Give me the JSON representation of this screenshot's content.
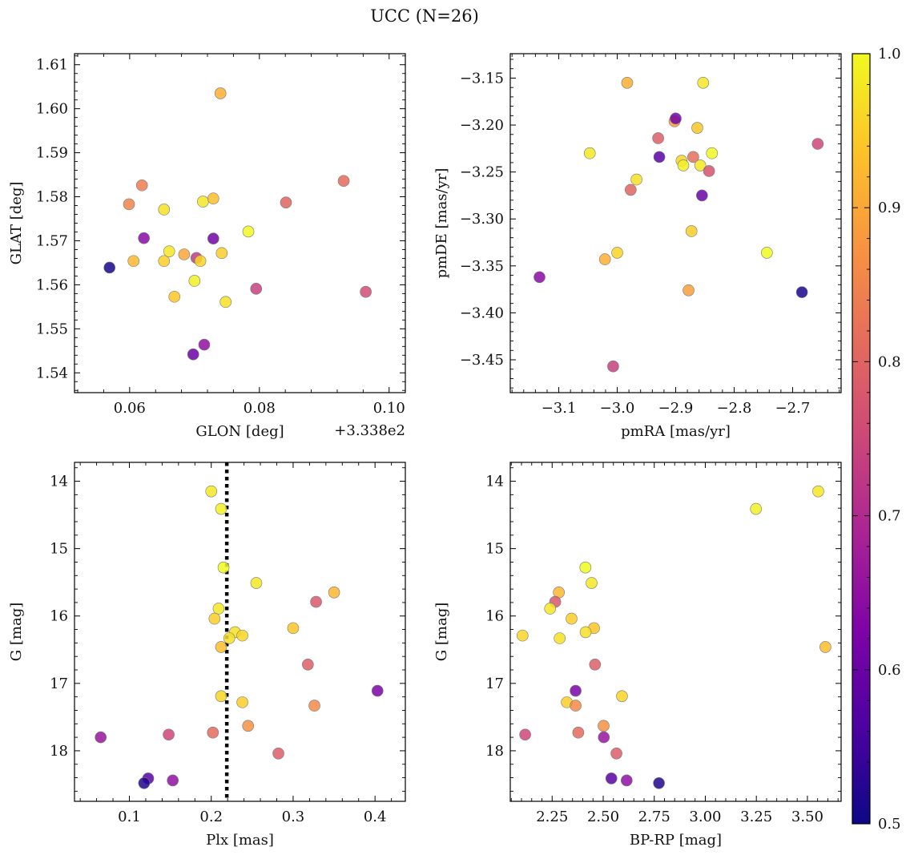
{
  "figure": {
    "suptitle": "UCC (N=26)",
    "colorbar": {
      "range": [
        0.5,
        1.0
      ],
      "ticks": [
        0.5,
        0.6,
        0.7,
        0.8,
        0.9,
        1.0
      ],
      "tick_labels": [
        "0.5",
        "0.6",
        "0.7",
        "0.8",
        "0.9",
        "1.0"
      ],
      "colormap": "plasma",
      "position": "right"
    }
  },
  "chart_data": [
    {
      "type": "scatter",
      "panel": "top-left",
      "xlabel": "GLON [deg]",
      "ylabel": "GLAT [deg]",
      "offset_label": "+3.338e2",
      "xlim": [
        0.0515,
        0.1025
      ],
      "ylim": [
        1.5355,
        1.6125
      ],
      "xticks": [
        0.06,
        0.08,
        0.1
      ],
      "xtick_labels": [
        "0.06",
        "0.08",
        "0.10"
      ],
      "yticks": [
        1.54,
        1.55,
        1.56,
        1.57,
        1.58,
        1.59,
        1.6,
        1.61
      ],
      "ytick_labels": [
        "1.54",
        "1.55",
        "1.56",
        "1.57",
        "1.58",
        "1.59",
        "1.60",
        "1.61"
      ],
      "grid": false,
      "points": [
        {
          "x": 0.074,
          "y": 1.6035,
          "c": 0.91
        },
        {
          "x": 0.0569,
          "y": 1.5639,
          "c": 0.51
        },
        {
          "x": 0.0599,
          "y": 1.5783,
          "c": 0.85
        },
        {
          "x": 0.0606,
          "y": 1.5654,
          "c": 0.92
        },
        {
          "x": 0.0619,
          "y": 1.5826,
          "c": 0.84
        },
        {
          "x": 0.0622,
          "y": 1.5706,
          "c": 0.64
        },
        {
          "x": 0.0653,
          "y": 1.5771,
          "c": 0.97
        },
        {
          "x": 0.0653,
          "y": 1.5654,
          "c": 0.95
        },
        {
          "x": 0.0661,
          "y": 1.5676,
          "c": 0.98
        },
        {
          "x": 0.0669,
          "y": 1.5573,
          "c": 0.94
        },
        {
          "x": 0.0684,
          "y": 1.5669,
          "c": 0.9
        },
        {
          "x": 0.0698,
          "y": 1.5442,
          "c": 0.6
        },
        {
          "x": 0.07,
          "y": 1.5609,
          "c": 0.99
        },
        {
          "x": 0.0703,
          "y": 1.5661,
          "c": 0.73
        },
        {
          "x": 0.0709,
          "y": 1.5654,
          "c": 0.96
        },
        {
          "x": 0.0713,
          "y": 1.5789,
          "c": 0.98
        },
        {
          "x": 0.0715,
          "y": 1.5464,
          "c": 0.65
        },
        {
          "x": 0.0729,
          "y": 1.5796,
          "c": 0.93
        },
        {
          "x": 0.0729,
          "y": 1.5705,
          "c": 0.61
        },
        {
          "x": 0.0742,
          "y": 1.5672,
          "c": 0.95
        },
        {
          "x": 0.0748,
          "y": 1.5561,
          "c": 0.97
        },
        {
          "x": 0.0783,
          "y": 1.5721,
          "c": 1.0
        },
        {
          "x": 0.0795,
          "y": 1.5591,
          "c": 0.74
        },
        {
          "x": 0.0841,
          "y": 1.5787,
          "c": 0.8
        },
        {
          "x": 0.093,
          "y": 1.5836,
          "c": 0.81
        },
        {
          "x": 0.0964,
          "y": 1.5584,
          "c": 0.76
        }
      ]
    },
    {
      "type": "scatter",
      "panel": "top-right",
      "xlabel": "pmRA [mas/yr]",
      "ylabel": "pmDE [mas/yr]",
      "xlim": [
        -3.183,
        -2.617
      ],
      "ylim": [
        -3.485,
        -3.124
      ],
      "xticks": [
        -3.1,
        -3.0,
        -2.9,
        -2.8,
        -2.7
      ],
      "xtick_labels": [
        "−3.1",
        "−3.0",
        "−2.9",
        "−2.8",
        "−2.7"
      ],
      "yticks": [
        -3.45,
        -3.4,
        -3.35,
        -3.3,
        -3.25,
        -3.2,
        -3.15
      ],
      "ytick_labels": [
        "−3.45",
        "−3.40",
        "−3.35",
        "−3.30",
        "−3.25",
        "−3.20",
        "−3.15"
      ],
      "grid": false,
      "points": [
        {
          "x": -3.133,
          "y": -3.362,
          "c": 0.64
        },
        {
          "x": -3.047,
          "y": -3.23,
          "c": 0.98
        },
        {
          "x": -3.021,
          "y": -3.343,
          "c": 0.91
        },
        {
          "x": -3.007,
          "y": -3.457,
          "c": 0.74
        },
        {
          "x": -3.0,
          "y": -3.336,
          "c": 0.96
        },
        {
          "x": -2.983,
          "y": -3.155,
          "c": 0.91
        },
        {
          "x": -2.977,
          "y": -3.269,
          "c": 0.8
        },
        {
          "x": -2.967,
          "y": -3.258,
          "c": 0.97
        },
        {
          "x": -2.93,
          "y": -3.214,
          "c": 0.79
        },
        {
          "x": -2.928,
          "y": -3.234,
          "c": 0.58
        },
        {
          "x": -2.902,
          "y": -3.196,
          "c": 0.88
        },
        {
          "x": -2.9,
          "y": -3.193,
          "c": 0.61
        },
        {
          "x": -2.89,
          "y": -3.238,
          "c": 0.96
        },
        {
          "x": -2.887,
          "y": -3.243,
          "c": 0.99
        },
        {
          "x": -2.878,
          "y": -3.376,
          "c": 0.89
        },
        {
          "x": -2.873,
          "y": -3.313,
          "c": 0.95
        },
        {
          "x": -2.87,
          "y": -3.234,
          "c": 0.82
        },
        {
          "x": -2.863,
          "y": -3.203,
          "c": 0.94
        },
        {
          "x": -2.858,
          "y": -3.243,
          "c": 0.98
        },
        {
          "x": -2.855,
          "y": -3.275,
          "c": 0.6
        },
        {
          "x": -2.853,
          "y": -3.155,
          "c": 0.98
        },
        {
          "x": -2.843,
          "y": -3.249,
          "c": 0.77
        },
        {
          "x": -2.838,
          "y": -3.23,
          "c": 1.0
        },
        {
          "x": -2.744,
          "y": -3.336,
          "c": 1.0
        },
        {
          "x": -2.684,
          "y": -3.378,
          "c": 0.51
        },
        {
          "x": -2.657,
          "y": -3.22,
          "c": 0.75
        }
      ]
    },
    {
      "type": "scatter",
      "panel": "bottom-left",
      "xlabel": "Plx [mas]",
      "ylabel": "G [mag]",
      "xlim": [
        0.033,
        0.437
      ],
      "ylim": [
        18.75,
        13.72
      ],
      "y_inverted": true,
      "xticks": [
        0.1,
        0.2,
        0.3,
        0.4
      ],
      "xtick_labels": [
        "0.1",
        "0.2",
        "0.3",
        "0.4"
      ],
      "yticks": [
        14,
        15,
        16,
        17,
        18
      ],
      "ytick_labels": [
        "14",
        "15",
        "16",
        "17",
        "18"
      ],
      "grid": false,
      "vline": {
        "x": 0.219,
        "style": "dotted",
        "color": "#000000"
      },
      "points": [
        {
          "x": 0.2,
          "y": 14.15,
          "c": 0.98
        },
        {
          "x": 0.212,
          "y": 14.41,
          "c": 0.99
        },
        {
          "x": 0.215,
          "y": 15.28,
          "c": 1.0
        },
        {
          "x": 0.255,
          "y": 15.51,
          "c": 0.98
        },
        {
          "x": 0.35,
          "y": 15.65,
          "c": 0.92
        },
        {
          "x": 0.328,
          "y": 15.79,
          "c": 0.78
        },
        {
          "x": 0.209,
          "y": 15.89,
          "c": 0.98
        },
        {
          "x": 0.204,
          "y": 16.04,
          "c": 0.95
        },
        {
          "x": 0.3,
          "y": 16.18,
          "c": 0.94
        },
        {
          "x": 0.229,
          "y": 16.24,
          "c": 0.97
        },
        {
          "x": 0.238,
          "y": 16.29,
          "c": 0.96
        },
        {
          "x": 0.222,
          "y": 16.33,
          "c": 0.97
        },
        {
          "x": 0.212,
          "y": 16.46,
          "c": 0.93
        },
        {
          "x": 0.318,
          "y": 16.72,
          "c": 0.79
        },
        {
          "x": 0.403,
          "y": 17.11,
          "c": 0.62
        },
        {
          "x": 0.212,
          "y": 17.19,
          "c": 0.96
        },
        {
          "x": 0.238,
          "y": 17.28,
          "c": 0.95
        },
        {
          "x": 0.326,
          "y": 17.33,
          "c": 0.86
        },
        {
          "x": 0.245,
          "y": 17.63,
          "c": 0.87
        },
        {
          "x": 0.202,
          "y": 17.73,
          "c": 0.81
        },
        {
          "x": 0.148,
          "y": 17.76,
          "c": 0.75
        },
        {
          "x": 0.065,
          "y": 17.8,
          "c": 0.66
        },
        {
          "x": 0.282,
          "y": 18.04,
          "c": 0.79
        },
        {
          "x": 0.123,
          "y": 18.41,
          "c": 0.58
        },
        {
          "x": 0.153,
          "y": 18.44,
          "c": 0.65
        },
        {
          "x": 0.118,
          "y": 18.48,
          "c": 0.52
        }
      ]
    },
    {
      "type": "scatter",
      "panel": "bottom-right",
      "xlabel": "BP-RP [mag]",
      "ylabel": "G [mag]",
      "xlim": [
        2.045,
        3.665
      ],
      "ylim": [
        18.75,
        13.72
      ],
      "y_inverted": true,
      "xticks": [
        2.25,
        2.5,
        2.75,
        3.0,
        3.25,
        3.5
      ],
      "xtick_labels": [
        "2.25",
        "2.50",
        "2.75",
        "3.00",
        "3.25",
        "3.50"
      ],
      "yticks": [
        14,
        15,
        16,
        17,
        18
      ],
      "ytick_labels": [
        "14",
        "15",
        "16",
        "17",
        "18"
      ],
      "grid": false,
      "points": [
        {
          "x": 3.553,
          "y": 14.15,
          "c": 0.98
        },
        {
          "x": 3.248,
          "y": 14.41,
          "c": 0.99
        },
        {
          "x": 2.413,
          "y": 15.28,
          "c": 1.0
        },
        {
          "x": 2.443,
          "y": 15.51,
          "c": 0.98
        },
        {
          "x": 2.283,
          "y": 15.65,
          "c": 0.92
        },
        {
          "x": 2.265,
          "y": 15.79,
          "c": 0.78
        },
        {
          "x": 2.24,
          "y": 15.89,
          "c": 0.98
        },
        {
          "x": 2.345,
          "y": 16.04,
          "c": 0.95
        },
        {
          "x": 2.455,
          "y": 16.18,
          "c": 0.94
        },
        {
          "x": 2.414,
          "y": 16.24,
          "c": 0.97
        },
        {
          "x": 2.105,
          "y": 16.29,
          "c": 0.96
        },
        {
          "x": 2.287,
          "y": 16.33,
          "c": 0.97
        },
        {
          "x": 3.588,
          "y": 16.46,
          "c": 0.93
        },
        {
          "x": 2.46,
          "y": 16.72,
          "c": 0.79
        },
        {
          "x": 2.365,
          "y": 17.11,
          "c": 0.62
        },
        {
          "x": 2.592,
          "y": 17.19,
          "c": 0.96
        },
        {
          "x": 2.322,
          "y": 17.28,
          "c": 0.95
        },
        {
          "x": 2.365,
          "y": 17.33,
          "c": 0.86
        },
        {
          "x": 2.502,
          "y": 17.63,
          "c": 0.87
        },
        {
          "x": 2.378,
          "y": 17.73,
          "c": 0.81
        },
        {
          "x": 2.118,
          "y": 17.76,
          "c": 0.75
        },
        {
          "x": 2.503,
          "y": 17.8,
          "c": 0.66
        },
        {
          "x": 2.565,
          "y": 18.04,
          "c": 0.79
        },
        {
          "x": 2.54,
          "y": 18.41,
          "c": 0.58
        },
        {
          "x": 2.615,
          "y": 18.44,
          "c": 0.65
        },
        {
          "x": 2.773,
          "y": 18.48,
          "c": 0.52
        }
      ]
    }
  ]
}
